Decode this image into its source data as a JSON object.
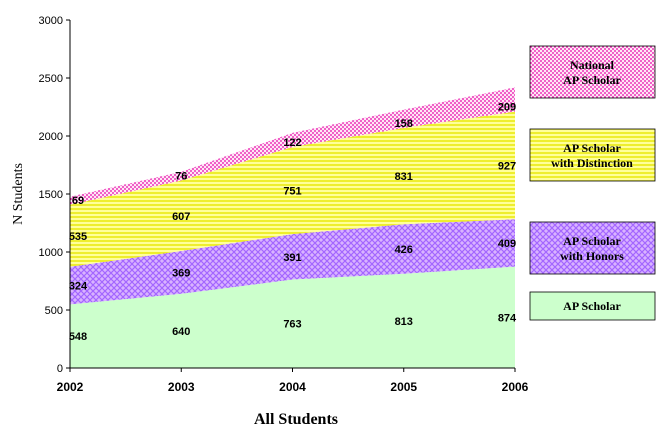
{
  "chart_data": {
    "type": "area",
    "stacked": true,
    "caption": "All Students",
    "ylabel": "N Students",
    "x": [
      "2002",
      "2003",
      "2004",
      "2005",
      "2006"
    ],
    "ylim": [
      0,
      3000
    ],
    "yticks": [
      "0",
      "500",
      "1000",
      "1500",
      "2000",
      "2500",
      "3000"
    ],
    "grid": false,
    "legend_placement": "right",
    "series": [
      {
        "name": "AP Scholar",
        "values": [
          548,
          640,
          763,
          813,
          874
        ],
        "color": "#ccffcc",
        "pattern": "solid"
      },
      {
        "name": "AP Scholar with Honors",
        "values": [
          324,
          369,
          391,
          426,
          409
        ],
        "color": "#cc99ff",
        "pattern": "crosshatch"
      },
      {
        "name": "AP Scholar with Distinction",
        "values": [
          535,
          607,
          751,
          831,
          927
        ],
        "color": "#ffff66",
        "pattern": "horizontal-lines"
      },
      {
        "name": "National AP Scholar",
        "values": [
          69,
          76,
          122,
          158,
          209
        ],
        "color": "#ff66cc",
        "pattern": "dots"
      }
    ],
    "legend": [
      {
        "line1": "National",
        "line2": "AP Scholar",
        "series": 3
      },
      {
        "line1": "AP Scholar",
        "line2": "with Distinction",
        "series": 2
      },
      {
        "line1": "AP Scholar",
        "line2": "with Honors",
        "series": 1
      },
      {
        "line1": "AP Scholar",
        "line2": "",
        "series": 0
      }
    ]
  }
}
